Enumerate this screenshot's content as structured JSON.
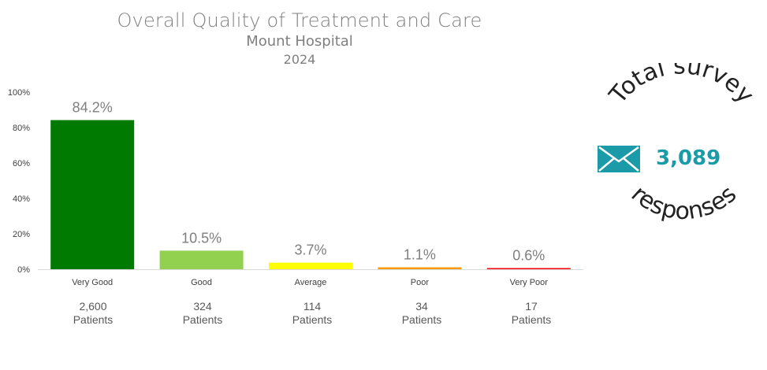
{
  "header": {
    "title": "Overall Quality of Treatment and Care",
    "subtitle": "Mount Hospital",
    "year": "2024"
  },
  "chart_data": {
    "type": "bar",
    "categories": [
      "Very Good",
      "Good",
      "Average",
      "Poor",
      "Very Poor"
    ],
    "values": [
      84.2,
      10.5,
      3.7,
      1.1,
      0.6
    ],
    "data_labels": [
      "84.2%",
      "10.5%",
      "3.7%",
      "1.1%",
      "0.6%"
    ],
    "colors": [
      "#007a00",
      "#92d050",
      "#ffff00",
      "#ff9a0a",
      "#ff0000"
    ],
    "ylim": [
      0,
      100
    ],
    "yticks": [
      "0%",
      "20%",
      "40%",
      "60%",
      "80%",
      "100%"
    ],
    "grid": false,
    "patients": [
      {
        "count": "2,600",
        "unit": "Patients"
      },
      {
        "count": "324",
        "unit": "Patients"
      },
      {
        "count": "114",
        "unit": "Patients"
      },
      {
        "count": "34",
        "unit": "Patients"
      },
      {
        "count": "17",
        "unit": "Patients"
      }
    ]
  },
  "survey": {
    "top_text": "Total survey",
    "bottom_text": "responses",
    "total": "3,089",
    "icon": "envelope-icon",
    "accent_color": "#1b9aa8"
  }
}
